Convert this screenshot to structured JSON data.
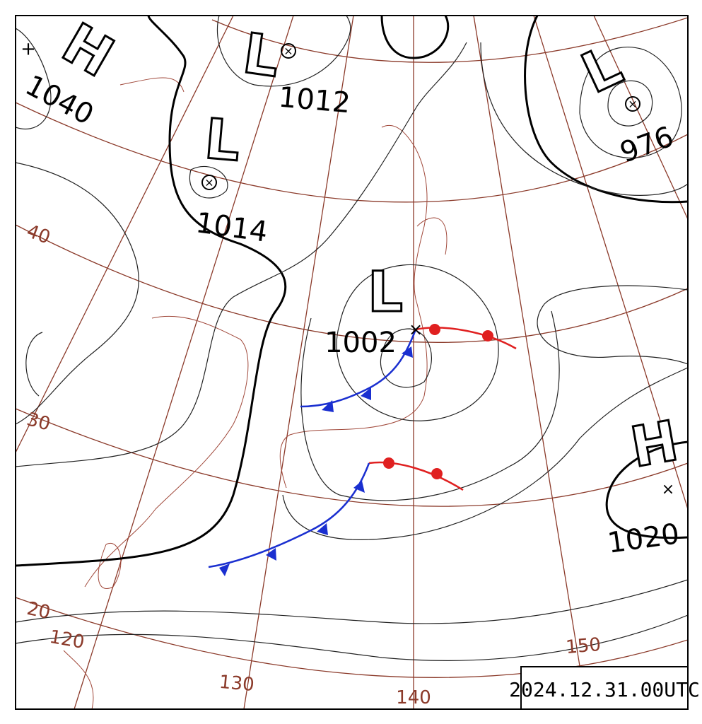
{
  "timestamp": "2024.12.31.00UTC",
  "pressure_systems": [
    {
      "type": "H",
      "pressure": "1040"
    },
    {
      "type": "L",
      "pressure": "1012"
    },
    {
      "type": "L",
      "pressure": "1014"
    },
    {
      "type": "L",
      "pressure": "1002"
    },
    {
      "type": "L",
      "pressure": "976"
    },
    {
      "type": "H",
      "pressure": "1020"
    }
  ],
  "latitude_labels": [
    "40",
    "30",
    "20"
  ],
  "longitude_labels": [
    "120",
    "130",
    "140",
    "150"
  ]
}
